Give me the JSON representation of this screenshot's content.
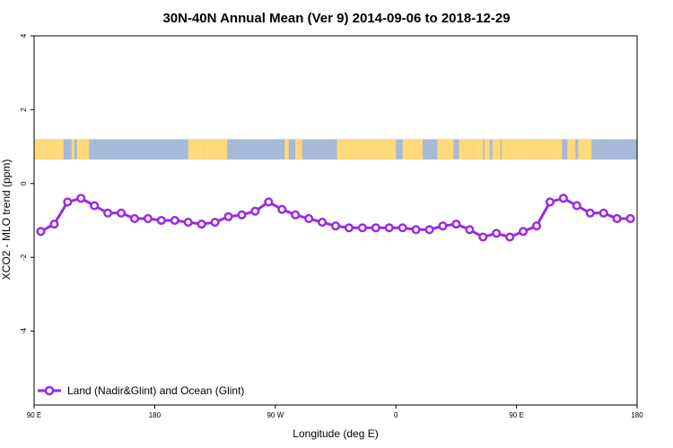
{
  "chart_data": {
    "type": "line",
    "title": "30N-40N Annual Mean (Ver 9)   2014-09-06 to 2018-12-29",
    "xlabel": "Longitude (deg E)",
    "ylabel": "XCO2 - MLO trend (ppm)",
    "xlim": [
      -90,
      360
    ],
    "ylim": [
      -6,
      4
    ],
    "x_ticks": [
      {
        "value": -90,
        "label": "90 E"
      },
      {
        "value": 0,
        "label": "180"
      },
      {
        "value": 90,
        "label": "90 W"
      },
      {
        "value": 180,
        "label": "0"
      },
      {
        "value": 270,
        "label": "90 E"
      },
      {
        "value": 360,
        "label": "180"
      }
    ],
    "y_ticks": [
      {
        "value": -4,
        "label": "-4"
      },
      {
        "value": -2,
        "label": "-2"
      },
      {
        "value": 0,
        "label": "0"
      },
      {
        "value": 2,
        "label": "2"
      },
      {
        "value": 4,
        "label": "4"
      }
    ],
    "grid": false,
    "legend_position": "bottom-left",
    "background_map": {
      "y_range": [
        0.65,
        1.2
      ],
      "land_color": "#ffd97a",
      "ocean_color": "#a7b9d8",
      "land_x_ranges": [
        [
          -90,
          -68
        ],
        [
          -62,
          -60
        ],
        [
          -58,
          -49
        ],
        [
          25,
          37
        ],
        [
          37,
          54
        ],
        [
          97,
          100
        ],
        [
          105,
          110
        ],
        [
          136,
          141
        ],
        [
          141,
          180
        ],
        [
          185,
          200
        ],
        [
          211,
          223
        ],
        [
          227,
          238
        ],
        [
          238,
          245
        ],
        [
          246,
          250
        ],
        [
          252,
          258
        ],
        [
          259,
          270
        ],
        [
          270,
          304
        ],
        [
          308,
          314
        ],
        [
          316,
          318
        ],
        [
          318,
          326
        ]
      ]
    },
    "series": [
      {
        "name": "Land (Nadir&Glint) and Ocean (Glint)",
        "color": "#9a2be2",
        "x": [
          -85,
          -75,
          -65,
          -55,
          -45,
          -35,
          -25,
          -15,
          -5,
          5,
          15,
          25,
          35,
          45,
          55,
          65,
          75,
          85,
          95,
          105,
          115,
          125,
          135,
          145,
          155,
          165,
          175,
          185,
          195,
          205,
          215,
          225,
          235,
          245,
          255,
          265,
          275,
          285,
          295,
          305,
          315,
          325,
          335,
          345,
          355
        ],
        "y": [
          -1.3,
          -1.1,
          -0.5,
          -0.4,
          -0.6,
          -0.8,
          -0.8,
          -0.95,
          -0.95,
          -1.0,
          -1.0,
          -1.05,
          -1.1,
          -1.05,
          -0.9,
          -0.85,
          -0.75,
          -0.5,
          -0.7,
          -0.85,
          -0.95,
          -1.05,
          -1.15,
          -1.2,
          -1.2,
          -1.2,
          -1.2,
          -1.2,
          -1.25,
          -1.25,
          -1.15,
          -1.1,
          -1.25,
          -1.45,
          -1.35,
          -1.45,
          -1.3,
          -1.15,
          -0.5,
          -0.4,
          -0.6,
          -0.8,
          -0.8,
          -0.95,
          -0.95
        ]
      }
    ]
  }
}
